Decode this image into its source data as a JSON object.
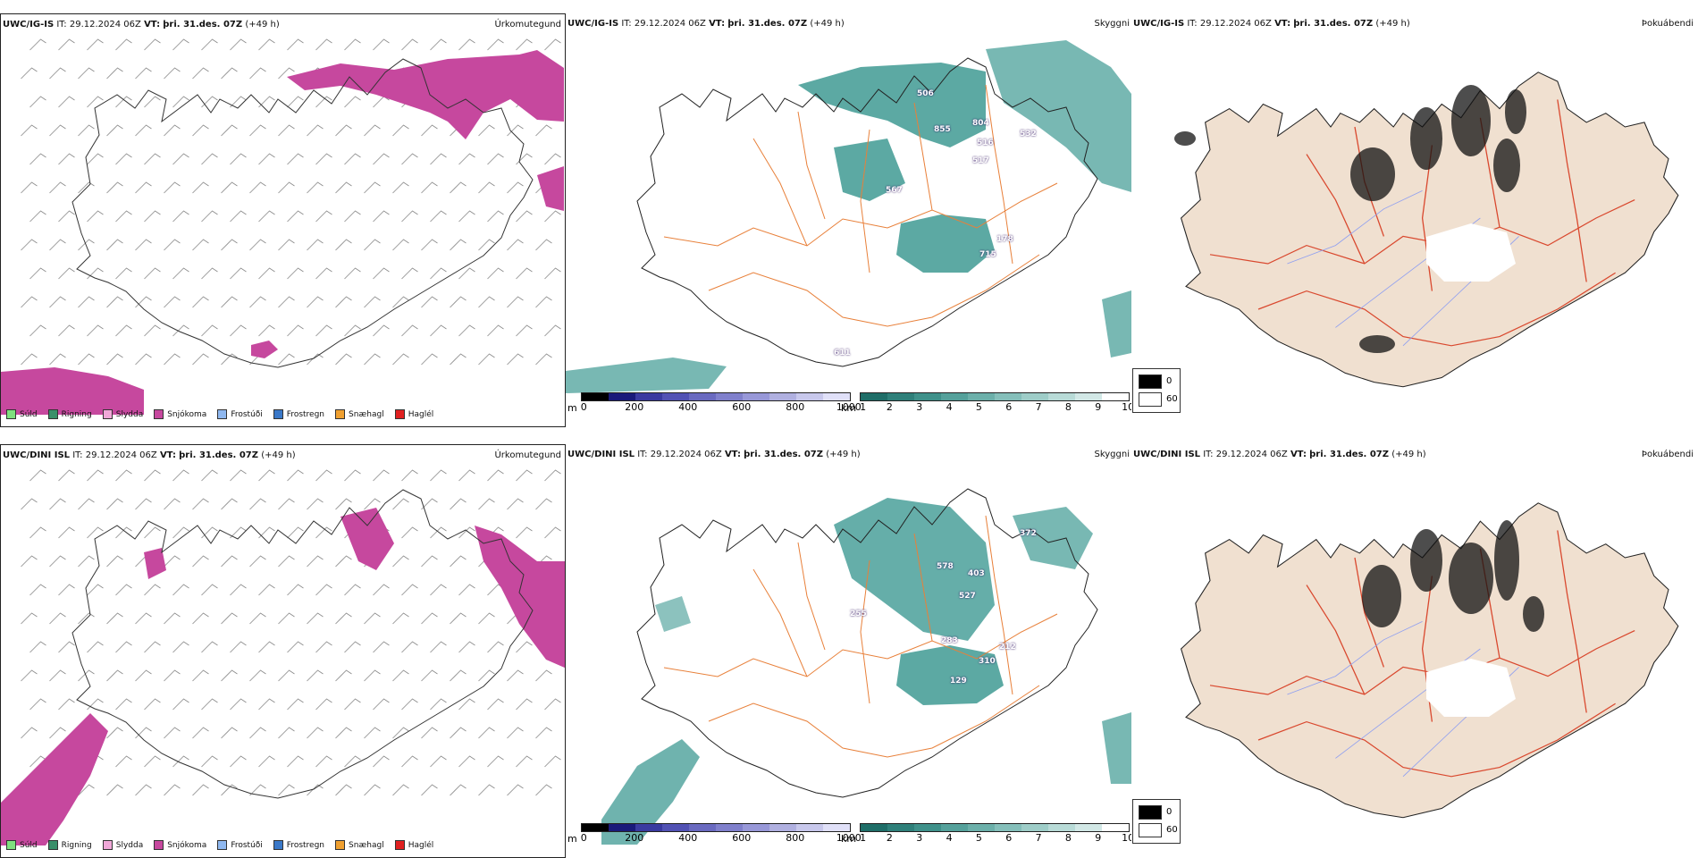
{
  "colors": {
    "snow": "#c6489e",
    "cloud": "#3f9a93",
    "roads": "#e8803a",
    "land": "#f0e0d0",
    "redroads": "#d9482e",
    "rivers": "#8f9ff0"
  },
  "rows": [
    {
      "model": "UWC/IG-IS",
      "it_label": "IT:",
      "it_value": "29.12.2024 06Z",
      "vt_label": "VT:",
      "vt_value": "þri. 31.des. 07Z",
      "lead": "(+49 h)",
      "cloud_numbers": [
        "506",
        "804",
        "855",
        "532",
        "516",
        "517",
        "567",
        "178",
        "715",
        "611"
      ]
    },
    {
      "model": "UWC/DINI ISL",
      "it_label": "IT:",
      "it_value": "29.12.2024 06Z",
      "vt_label": "VT:",
      "vt_value": "þri. 31.des. 07Z",
      "lead": "(+49 h)",
      "cloud_numbers": [
        "372",
        "578",
        "403",
        "527",
        "283",
        "212",
        "310",
        "255",
        "129"
      ]
    }
  ],
  "panel_titles": {
    "precip": "Úrkomutegund",
    "cloud": "Skyggni",
    "fog": "Þokuábendi"
  },
  "precip_legend": [
    {
      "label": "Súld",
      "color": "#7fe07f"
    },
    {
      "label": "Rigning",
      "color": "#3a8f6a"
    },
    {
      "label": "Slydda",
      "color": "#f0a8d8"
    },
    {
      "label": "Snjókoma",
      "color": "#c6489e"
    },
    {
      "label": "Frostúði",
      "color": "#8fb8f0"
    },
    {
      "label": "Frostregn",
      "color": "#3a78c8"
    },
    {
      "label": "Snæhagl",
      "color": "#f0a030"
    },
    {
      "label": "Haglél",
      "color": "#e02020"
    }
  ],
  "cloudbase_scale": {
    "unit": "m",
    "ticks": [
      "0",
      "200",
      "400",
      "600",
      "800",
      "1000"
    ],
    "colors": [
      "#000000",
      "#1a1a7a",
      "#3a3aa0",
      "#5252b4",
      "#6a6ac0",
      "#8080cc",
      "#9898d8",
      "#b0b0e0",
      "#c8c8ec",
      "#e0e0f8"
    ]
  },
  "visibility_scale": {
    "unit": "km",
    "ticks": [
      "1",
      "2",
      "3",
      "4",
      "5",
      "6",
      "7",
      "8",
      "9",
      "10"
    ],
    "colors": [
      "#1f6e68",
      "#2f807a",
      "#3f918a",
      "#55a19b",
      "#6cb0aa",
      "#85bfba",
      "#9ecdc8",
      "#b8dbd7",
      "#d2e8e6",
      "#ffffff"
    ]
  },
  "fog_legend": {
    "high": "0",
    "low": "60"
  }
}
